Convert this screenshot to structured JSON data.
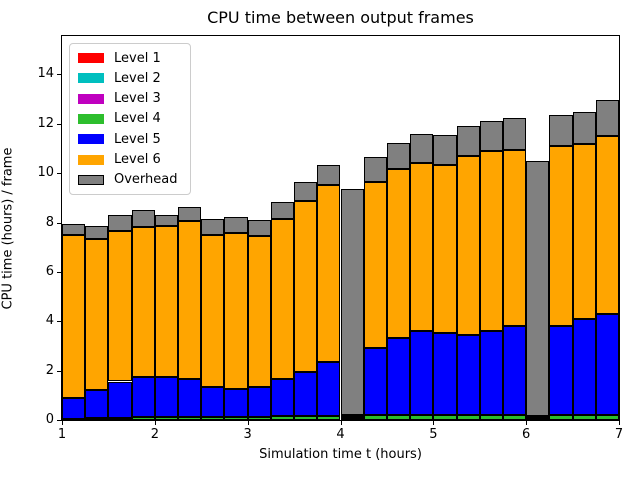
{
  "figure": {
    "title": "CPU time between output frames",
    "xlabel": "Simulation time t (hours)",
    "ylabel": "CPU time (hours) / frame"
  },
  "legend": {
    "entries": [
      {
        "label": "Level 1",
        "color": "#ff0000",
        "edge": false
      },
      {
        "label": "Level 2",
        "color": "#00bfbf",
        "edge": false
      },
      {
        "label": "Level 3",
        "color": "#bf00bf",
        "edge": false
      },
      {
        "label": "Level 4",
        "color": "#2dbe2d",
        "edge": false
      },
      {
        "label": "Level 5",
        "color": "#0000ff",
        "edge": false
      },
      {
        "label": "Level 6",
        "color": "#ffa500",
        "edge": false
      },
      {
        "label": "Overhead",
        "color": "#808080",
        "edge": true
      }
    ]
  },
  "chart_data": {
    "type": "bar",
    "stacked": true,
    "title": "CPU time between output frames",
    "xlabel": "Simulation time t (hours)",
    "ylabel": "CPU time (hours) / frame",
    "xlim": [
      1,
      7
    ],
    "ylim": [
      0,
      15.6
    ],
    "x_ticks": [
      1,
      2,
      3,
      4,
      5,
      6,
      7
    ],
    "y_ticks": [
      0,
      2,
      4,
      6,
      8,
      10,
      12,
      14
    ],
    "grid": false,
    "legend_position": "upper left",
    "bar_bin_width_hours": 0.25,
    "bin_start": [
      1.0,
      1.25,
      1.5,
      1.75,
      2.0,
      2.25,
      2.5,
      2.75,
      3.0,
      3.25,
      3.5,
      3.75,
      4.0,
      4.25,
      4.5,
      4.75,
      5.0,
      5.25,
      5.5,
      5.75,
      6.0,
      6.25,
      6.5,
      6.75
    ],
    "bar_edge_color": "#000000",
    "series": [
      {
        "name": "Level 1",
        "color": "#ff0000",
        "values": [
          0,
          0,
          0,
          0,
          0,
          0,
          0,
          0,
          0,
          0,
          0,
          0,
          0,
          0,
          0,
          0,
          0,
          0,
          0,
          0,
          0,
          0,
          0,
          0
        ]
      },
      {
        "name": "Level 2",
        "color": "#00bfbf",
        "values": [
          0,
          0,
          0,
          0,
          0,
          0,
          0,
          0,
          0,
          0,
          0,
          0,
          0,
          0,
          0,
          0,
          0,
          0,
          0,
          0,
          0,
          0,
          0,
          0
        ]
      },
      {
        "name": "Level 3",
        "color": "#bf00bf",
        "values": [
          0,
          0,
          0,
          0,
          0,
          0,
          0,
          0,
          0,
          0,
          0,
          0,
          0,
          0,
          0,
          0,
          0,
          0,
          0,
          0,
          0,
          0,
          0,
          0
        ]
      },
      {
        "name": "Level 4",
        "color": "#2dbe2d",
        "values": [
          0.03,
          0.07,
          0.1,
          0.12,
          0.12,
          0.12,
          0.12,
          0.12,
          0.12,
          0.15,
          0.15,
          0.15,
          0.05,
          0.2,
          0.2,
          0.2,
          0.2,
          0.2,
          0.2,
          0.2,
          0.05,
          0.2,
          0.2,
          0.2
        ]
      },
      {
        "name": "Level 5",
        "color": "#0000ff",
        "values": [
          0.87,
          1.15,
          1.46,
          1.64,
          1.61,
          1.55,
          1.21,
          1.14,
          1.21,
          1.52,
          1.81,
          2.22,
          0.08,
          2.72,
          3.14,
          3.39,
          3.32,
          3.24,
          3.42,
          3.62,
          0.06,
          3.61,
          3.88,
          4.08
        ]
      },
      {
        "name": "Level 6",
        "color": "#ffa500",
        "values": [
          6.6,
          6.13,
          6.1,
          6.05,
          6.12,
          6.41,
          6.17,
          6.32,
          6.14,
          6.48,
          6.93,
          7.16,
          0.08,
          6.71,
          6.85,
          6.81,
          6.83,
          7.24,
          7.26,
          7.13,
          0.06,
          7.28,
          7.1,
          7.24
        ]
      },
      {
        "name": "Overhead",
        "color": "#808080",
        "values": [
          0.44,
          0.5,
          0.66,
          0.71,
          0.46,
          0.56,
          0.65,
          0.66,
          0.65,
          0.7,
          0.74,
          0.81,
          9.17,
          1.01,
          1.03,
          1.19,
          1.2,
          1.24,
          1.22,
          1.27,
          10.34,
          1.27,
          1.28,
          1.46
        ]
      }
    ]
  }
}
